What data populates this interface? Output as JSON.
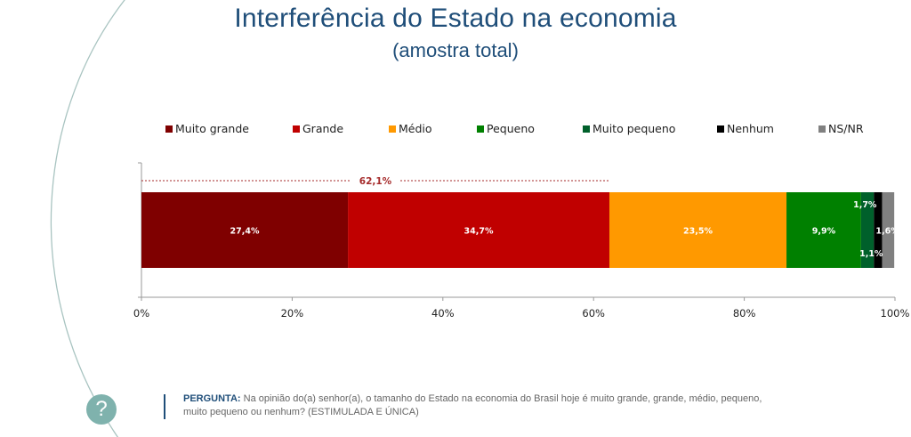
{
  "header": {
    "title": "Interferência do Estado na economia",
    "subtitle": "(amostra total)"
  },
  "chart_data": {
    "type": "bar",
    "orientation": "horizontal-stacked-100",
    "title": "Interferência do Estado na economia",
    "subtitle": "(amostra total)",
    "xlabel": "",
    "ylabel": "",
    "xlim": [
      0,
      100
    ],
    "x_ticks": [
      "0%",
      "20%",
      "40%",
      "60%",
      "80%",
      "100%"
    ],
    "x_tick_values": [
      0,
      20,
      40,
      60,
      80,
      100
    ],
    "legend_position": "top",
    "grid": false,
    "categories": [
      "Amostra total"
    ],
    "series": [
      {
        "name": "Muito grande",
        "values": [
          27.4
        ],
        "label": "27,4%",
        "color": "#7f0000"
      },
      {
        "name": "Grande",
        "values": [
          34.7
        ],
        "label": "34,7%",
        "color": "#c00000"
      },
      {
        "name": "Médio",
        "values": [
          23.5
        ],
        "label": "23,5%",
        "color": "#ff9900"
      },
      {
        "name": "Pequeno",
        "values": [
          9.9
        ],
        "label": "9,9%",
        "color": "#008000"
      },
      {
        "name": "Muito pequeno",
        "values": [
          1.7
        ],
        "label": "1,7%",
        "color": "#00602b"
      },
      {
        "name": "Nenhum",
        "values": [
          1.1
        ],
        "label": "1,1%",
        "color": "#000000"
      },
      {
        "name": "NS/NR",
        "values": [
          1.6
        ],
        "label": "1,6%",
        "color": "#808080"
      }
    ],
    "annotations": [
      {
        "type": "bracket",
        "from": 0,
        "to": 62.1,
        "label": "62,1%",
        "color": "#a52a2a"
      }
    ]
  },
  "footer": {
    "question_label": "PERGUNTA:",
    "question_text": "Na opinião do(a) senhor(a), o tamanho do Estado na economia do Brasil hoje é muito grande, grande, médio, pequeno, muito pequeno ou nenhum? (ESTIMULADA E ÚNICA)",
    "help_icon": "?"
  },
  "colors": {
    "title": "#1f4e79",
    "accent_teal": "#7fb2ad"
  }
}
